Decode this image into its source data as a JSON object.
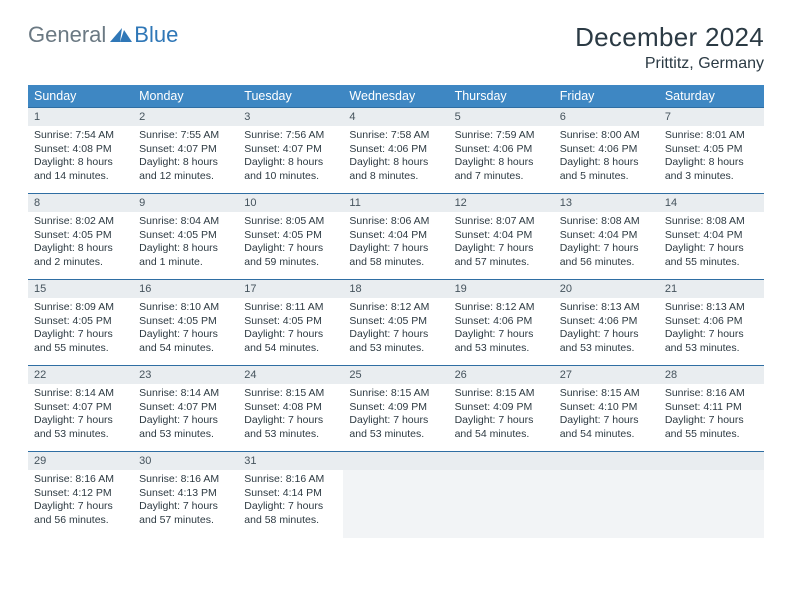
{
  "logo": {
    "general": "General",
    "blue": "Blue",
    "triangle_color": "#2f77b7"
  },
  "header": {
    "month_title": "December 2024",
    "location": "Prittitz, Germany"
  },
  "colors": {
    "header_row_bg": "#3e87c3",
    "header_row_text": "#ffffff",
    "daybar_bg": "#e9edf0",
    "cell_border": "#2f6ea3",
    "text": "#2d3a42"
  },
  "daynames": [
    "Sunday",
    "Monday",
    "Tuesday",
    "Wednesday",
    "Thursday",
    "Friday",
    "Saturday"
  ],
  "weeks": [
    [
      {
        "day": "1",
        "sunrise": "Sunrise: 7:54 AM",
        "sunset": "Sunset: 4:08 PM",
        "daylight1": "Daylight: 8 hours",
        "daylight2": "and 14 minutes."
      },
      {
        "day": "2",
        "sunrise": "Sunrise: 7:55 AM",
        "sunset": "Sunset: 4:07 PM",
        "daylight1": "Daylight: 8 hours",
        "daylight2": "and 12 minutes."
      },
      {
        "day": "3",
        "sunrise": "Sunrise: 7:56 AM",
        "sunset": "Sunset: 4:07 PM",
        "daylight1": "Daylight: 8 hours",
        "daylight2": "and 10 minutes."
      },
      {
        "day": "4",
        "sunrise": "Sunrise: 7:58 AM",
        "sunset": "Sunset: 4:06 PM",
        "daylight1": "Daylight: 8 hours",
        "daylight2": "and 8 minutes."
      },
      {
        "day": "5",
        "sunrise": "Sunrise: 7:59 AM",
        "sunset": "Sunset: 4:06 PM",
        "daylight1": "Daylight: 8 hours",
        "daylight2": "and 7 minutes."
      },
      {
        "day": "6",
        "sunrise": "Sunrise: 8:00 AM",
        "sunset": "Sunset: 4:06 PM",
        "daylight1": "Daylight: 8 hours",
        "daylight2": "and 5 minutes."
      },
      {
        "day": "7",
        "sunrise": "Sunrise: 8:01 AM",
        "sunset": "Sunset: 4:05 PM",
        "daylight1": "Daylight: 8 hours",
        "daylight2": "and 3 minutes."
      }
    ],
    [
      {
        "day": "8",
        "sunrise": "Sunrise: 8:02 AM",
        "sunset": "Sunset: 4:05 PM",
        "daylight1": "Daylight: 8 hours",
        "daylight2": "and 2 minutes."
      },
      {
        "day": "9",
        "sunrise": "Sunrise: 8:04 AM",
        "sunset": "Sunset: 4:05 PM",
        "daylight1": "Daylight: 8 hours",
        "daylight2": "and 1 minute."
      },
      {
        "day": "10",
        "sunrise": "Sunrise: 8:05 AM",
        "sunset": "Sunset: 4:05 PM",
        "daylight1": "Daylight: 7 hours",
        "daylight2": "and 59 minutes."
      },
      {
        "day": "11",
        "sunrise": "Sunrise: 8:06 AM",
        "sunset": "Sunset: 4:04 PM",
        "daylight1": "Daylight: 7 hours",
        "daylight2": "and 58 minutes."
      },
      {
        "day": "12",
        "sunrise": "Sunrise: 8:07 AM",
        "sunset": "Sunset: 4:04 PM",
        "daylight1": "Daylight: 7 hours",
        "daylight2": "and 57 minutes."
      },
      {
        "day": "13",
        "sunrise": "Sunrise: 8:08 AM",
        "sunset": "Sunset: 4:04 PM",
        "daylight1": "Daylight: 7 hours",
        "daylight2": "and 56 minutes."
      },
      {
        "day": "14",
        "sunrise": "Sunrise: 8:08 AM",
        "sunset": "Sunset: 4:04 PM",
        "daylight1": "Daylight: 7 hours",
        "daylight2": "and 55 minutes."
      }
    ],
    [
      {
        "day": "15",
        "sunrise": "Sunrise: 8:09 AM",
        "sunset": "Sunset: 4:05 PM",
        "daylight1": "Daylight: 7 hours",
        "daylight2": "and 55 minutes."
      },
      {
        "day": "16",
        "sunrise": "Sunrise: 8:10 AM",
        "sunset": "Sunset: 4:05 PM",
        "daylight1": "Daylight: 7 hours",
        "daylight2": "and 54 minutes."
      },
      {
        "day": "17",
        "sunrise": "Sunrise: 8:11 AM",
        "sunset": "Sunset: 4:05 PM",
        "daylight1": "Daylight: 7 hours",
        "daylight2": "and 54 minutes."
      },
      {
        "day": "18",
        "sunrise": "Sunrise: 8:12 AM",
        "sunset": "Sunset: 4:05 PM",
        "daylight1": "Daylight: 7 hours",
        "daylight2": "and 53 minutes."
      },
      {
        "day": "19",
        "sunrise": "Sunrise: 8:12 AM",
        "sunset": "Sunset: 4:06 PM",
        "daylight1": "Daylight: 7 hours",
        "daylight2": "and 53 minutes."
      },
      {
        "day": "20",
        "sunrise": "Sunrise: 8:13 AM",
        "sunset": "Sunset: 4:06 PM",
        "daylight1": "Daylight: 7 hours",
        "daylight2": "and 53 minutes."
      },
      {
        "day": "21",
        "sunrise": "Sunrise: 8:13 AM",
        "sunset": "Sunset: 4:06 PM",
        "daylight1": "Daylight: 7 hours",
        "daylight2": "and 53 minutes."
      }
    ],
    [
      {
        "day": "22",
        "sunrise": "Sunrise: 8:14 AM",
        "sunset": "Sunset: 4:07 PM",
        "daylight1": "Daylight: 7 hours",
        "daylight2": "and 53 minutes."
      },
      {
        "day": "23",
        "sunrise": "Sunrise: 8:14 AM",
        "sunset": "Sunset: 4:07 PM",
        "daylight1": "Daylight: 7 hours",
        "daylight2": "and 53 minutes."
      },
      {
        "day": "24",
        "sunrise": "Sunrise: 8:15 AM",
        "sunset": "Sunset: 4:08 PM",
        "daylight1": "Daylight: 7 hours",
        "daylight2": "and 53 minutes."
      },
      {
        "day": "25",
        "sunrise": "Sunrise: 8:15 AM",
        "sunset": "Sunset: 4:09 PM",
        "daylight1": "Daylight: 7 hours",
        "daylight2": "and 53 minutes."
      },
      {
        "day": "26",
        "sunrise": "Sunrise: 8:15 AM",
        "sunset": "Sunset: 4:09 PM",
        "daylight1": "Daylight: 7 hours",
        "daylight2": "and 54 minutes."
      },
      {
        "day": "27",
        "sunrise": "Sunrise: 8:15 AM",
        "sunset": "Sunset: 4:10 PM",
        "daylight1": "Daylight: 7 hours",
        "daylight2": "and 54 minutes."
      },
      {
        "day": "28",
        "sunrise": "Sunrise: 8:16 AM",
        "sunset": "Sunset: 4:11 PM",
        "daylight1": "Daylight: 7 hours",
        "daylight2": "and 55 minutes."
      }
    ],
    [
      {
        "day": "29",
        "sunrise": "Sunrise: 8:16 AM",
        "sunset": "Sunset: 4:12 PM",
        "daylight1": "Daylight: 7 hours",
        "daylight2": "and 56 minutes."
      },
      {
        "day": "30",
        "sunrise": "Sunrise: 8:16 AM",
        "sunset": "Sunset: 4:13 PM",
        "daylight1": "Daylight: 7 hours",
        "daylight2": "and 57 minutes."
      },
      {
        "day": "31",
        "sunrise": "Sunrise: 8:16 AM",
        "sunset": "Sunset: 4:14 PM",
        "daylight1": "Daylight: 7 hours",
        "daylight2": "and 58 minutes."
      },
      {
        "empty": true
      },
      {
        "empty": true
      },
      {
        "empty": true
      },
      {
        "empty": true
      }
    ]
  ]
}
